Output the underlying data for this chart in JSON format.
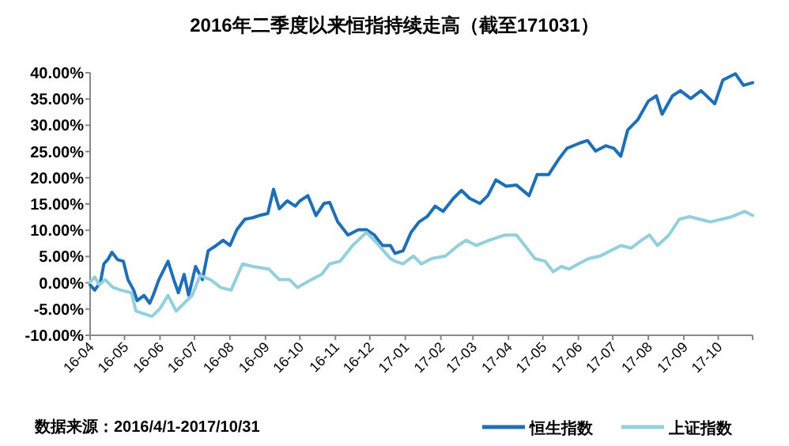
{
  "chart_data": {
    "type": "line",
    "title": "2016年二季度以来恒指持续走高（截至171031）",
    "annotations": [
      "数据来源：2016/4/1-2017/10/31"
    ],
    "xlim": [
      "2016-04-01",
      "2017-10-31"
    ],
    "xticks": [
      {
        "value": "2016-04-01",
        "label": "16-04"
      },
      {
        "value": "2016-05-01",
        "label": "16-05"
      },
      {
        "value": "2016-06-01",
        "label": "16-06"
      },
      {
        "value": "2016-07-01",
        "label": "16-07"
      },
      {
        "value": "2016-08-01",
        "label": "16-08"
      },
      {
        "value": "2016-09-01",
        "label": "16-09"
      },
      {
        "value": "2016-10-01",
        "label": "16-10"
      },
      {
        "value": "2016-11-01",
        "label": "16-11"
      },
      {
        "value": "2016-12-01",
        "label": "16-12"
      },
      {
        "value": "2017-01-01",
        "label": "17-01"
      },
      {
        "value": "2017-02-01",
        "label": "17-02"
      },
      {
        "value": "2017-03-01",
        "label": "17-03"
      },
      {
        "value": "2017-04-01",
        "label": "17-04"
      },
      {
        "value": "2017-05-01",
        "label": "17-05"
      },
      {
        "value": "2017-06-01",
        "label": "17-06"
      },
      {
        "value": "2017-07-01",
        "label": "17-07"
      },
      {
        "value": "2017-08-01",
        "label": "17-08"
      },
      {
        "value": "2017-09-01",
        "label": "17-09"
      },
      {
        "value": "2017-10-01",
        "label": "17-10"
      },
      {
        "value": "2017-10-31",
        "label": null
      }
    ],
    "ylim": [
      -10,
      40
    ],
    "yticks": [
      {
        "value": 40,
        "label": "40.00%"
      },
      {
        "value": 35,
        "label": "35.00%"
      },
      {
        "value": 30,
        "label": "30.00%"
      },
      {
        "value": 25,
        "label": "25.00%"
      },
      {
        "value": 20,
        "label": "20.00%"
      },
      {
        "value": 15,
        "label": "15.00%"
      },
      {
        "value": 10,
        "label": "10.00%"
      },
      {
        "value": 5,
        "label": "5.00%"
      },
      {
        "value": 0,
        "label": "0.00%"
      },
      {
        "value": -5,
        "label": "-5.00%"
      },
      {
        "value": -10,
        "label": "-10.00%"
      }
    ],
    "legend": "bottom right",
    "grid": false,
    "marker": "none",
    "line_style": "solid",
    "series": [
      {
        "name": "恒生指数",
        "color": "#1f6fb6",
        "x": [
          "2016-04-01",
          "2016-04-05",
          "2016-04-10",
          "2016-04-13",
          "2016-04-17",
          "2016-04-20",
          "2016-04-25",
          "2016-04-30",
          "2016-05-04",
          "2016-05-09",
          "2016-05-12",
          "2016-05-18",
          "2016-05-23",
          "2016-05-26",
          "2016-05-31",
          "2016-06-08",
          "2016-06-13",
          "2016-06-17",
          "2016-06-22",
          "2016-06-26",
          "2016-07-02",
          "2016-07-08",
          "2016-07-13",
          "2016-07-20",
          "2016-07-26",
          "2016-08-01",
          "2016-08-07",
          "2016-08-14",
          "2016-08-21",
          "2016-08-28",
          "2016-09-03",
          "2016-09-08",
          "2016-09-13",
          "2016-09-20",
          "2016-09-27",
          "2016-10-01",
          "2016-10-08",
          "2016-10-15",
          "2016-10-22",
          "2016-10-27",
          "2016-11-03",
          "2016-11-12",
          "2016-11-21",
          "2016-11-28",
          "2016-12-05",
          "2016-12-12",
          "2016-12-19",
          "2016-12-23",
          "2016-12-30",
          "2017-01-06",
          "2017-01-13",
          "2017-01-20",
          "2017-01-27",
          "2017-02-03",
          "2017-02-12",
          "2017-02-19",
          "2017-02-26",
          "2017-03-07",
          "2017-03-14",
          "2017-03-21",
          "2017-03-30",
          "2017-04-08",
          "2017-04-19",
          "2017-04-26",
          "2017-05-06",
          "2017-05-15",
          "2017-05-22",
          "2017-06-02",
          "2017-06-09",
          "2017-06-16",
          "2017-06-25",
          "2017-07-02",
          "2017-07-08",
          "2017-07-14",
          "2017-07-23",
          "2017-08-01",
          "2017-08-08",
          "2017-08-13",
          "2017-08-22",
          "2017-08-29",
          "2017-09-07",
          "2017-09-16",
          "2017-09-28",
          "2017-10-05",
          "2017-10-16",
          "2017-10-23",
          "2017-10-31"
        ],
        "values": [
          -0.4,
          -1.4,
          0.1,
          3.6,
          4.6,
          5.8,
          4.4,
          4.1,
          0.6,
          -1.4,
          -3.4,
          -2.4,
          -3.9,
          -2.4,
          0.6,
          4.1,
          0.6,
          -1.9,
          1.6,
          -2.4,
          3.1,
          0.6,
          6.1,
          7.1,
          8.1,
          7.1,
          10.1,
          12.1,
          12.4,
          12.9,
          13.2,
          17.8,
          14.1,
          15.6,
          14.6,
          15.6,
          16.6,
          12.8,
          15.1,
          15.3,
          11.6,
          9.1,
          10.1,
          10.1,
          9.1,
          7.1,
          7.1,
          5.6,
          6.1,
          9.6,
          11.6,
          12.6,
          14.6,
          13.6,
          16.1,
          17.6,
          16.1,
          15.1,
          16.6,
          19.6,
          18.4,
          18.6,
          16.6,
          20.6,
          20.6,
          23.6,
          25.6,
          26.6,
          27.1,
          25.1,
          26.1,
          25.6,
          24.1,
          29.1,
          31.1,
          34.6,
          35.6,
          32.1,
          35.6,
          36.6,
          35.1,
          36.6,
          34.1,
          38.6,
          39.8,
          37.6,
          38.1
        ]
      },
      {
        "name": "上证指数",
        "color": "#93cfdc",
        "x": [
          "2016-04-01",
          "2016-04-05",
          "2016-04-09",
          "2016-04-14",
          "2016-04-21",
          "2016-04-28",
          "2016-05-07",
          "2016-05-11",
          "2016-05-18",
          "2016-05-25",
          "2016-06-01",
          "2016-06-08",
          "2016-06-15",
          "2016-06-22",
          "2016-06-29",
          "2016-07-06",
          "2016-07-15",
          "2016-07-24",
          "2016-08-02",
          "2016-08-12",
          "2016-08-21",
          "2016-09-04",
          "2016-09-13",
          "2016-09-22",
          "2016-09-29",
          "2016-10-11",
          "2016-10-20",
          "2016-10-27",
          "2016-11-05",
          "2016-11-16",
          "2016-11-28",
          "2016-12-07",
          "2016-12-19",
          "2016-12-23",
          "2016-12-30",
          "2017-01-08",
          "2017-01-15",
          "2017-01-24",
          "2017-02-05",
          "2017-02-16",
          "2017-02-23",
          "2017-03-04",
          "2017-03-15",
          "2017-03-29",
          "2017-04-08",
          "2017-04-17",
          "2017-04-24",
          "2017-05-03",
          "2017-05-10",
          "2017-05-17",
          "2017-05-24",
          "2017-06-01",
          "2017-06-10",
          "2017-06-20",
          "2017-06-29",
          "2017-07-08",
          "2017-07-17",
          "2017-07-26",
          "2017-08-02",
          "2017-08-09",
          "2017-08-19",
          "2017-08-28",
          "2017-09-06",
          "2017-09-15",
          "2017-09-24",
          "2017-10-04",
          "2017-10-13",
          "2017-10-24",
          "2017-10-31"
        ],
        "values": [
          0.1,
          1.1,
          -0.4,
          0.6,
          -0.9,
          -1.4,
          -1.9,
          -5.4,
          -5.9,
          -6.4,
          -4.9,
          -2.4,
          -5.4,
          -3.9,
          -2.4,
          1.4,
          0.6,
          -0.9,
          -1.4,
          3.6,
          3.1,
          2.6,
          0.6,
          0.6,
          -0.9,
          0.6,
          1.6,
          3.6,
          4.1,
          7.1,
          9.6,
          7.6,
          4.6,
          4.1,
          3.6,
          5.1,
          3.6,
          4.6,
          5.1,
          7.1,
          8.1,
          7.1,
          8.1,
          9.1,
          9.1,
          6.6,
          4.6,
          4.1,
          2.1,
          3.1,
          2.6,
          3.6,
          4.6,
          5.1,
          6.1,
          7.1,
          6.6,
          8.1,
          9.1,
          7.1,
          9.1,
          12.1,
          12.6,
          12.1,
          11.6,
          12.1,
          12.6,
          13.6,
          12.8
        ]
      }
    ]
  }
}
